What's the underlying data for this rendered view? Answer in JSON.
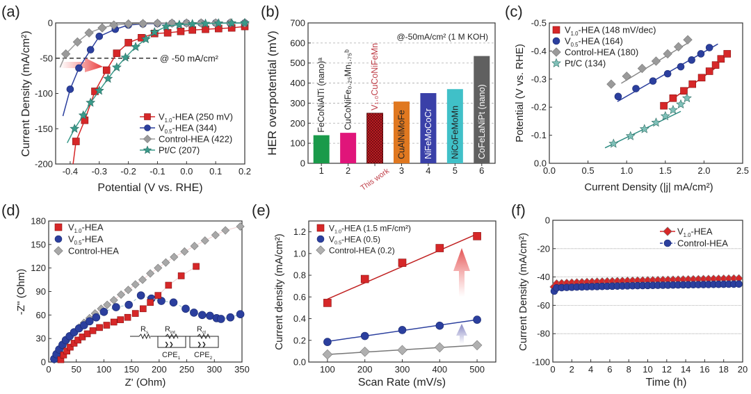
{
  "chart_data": [
    {
      "id": "a",
      "panel_label": "(a)",
      "type": "line",
      "xlabel": "Potential (V vs. RHE)",
      "ylabel": "Current Density (mA/cm²)",
      "xlim": [
        -0.45,
        0.2
      ],
      "ylim": [
        -200,
        0
      ],
      "xticks": [
        -0.4,
        -0.3,
        -0.2,
        -0.1,
        0.0,
        0.1,
        0.2
      ],
      "xtick_labels": [
        "-0.4",
        "-0.3",
        "-0.2",
        "-0.1",
        "0.0",
        "0.1",
        "0.2"
      ],
      "yticks": [
        0,
        -50,
        -100,
        -150,
        -200
      ],
      "ytick_labels": [
        "0",
        "-50",
        "-100",
        "-150",
        "-200"
      ],
      "annotation": "@ -50 mA/cm²",
      "reference_line_y": -50,
      "legend_position": "bottom-right",
      "series": [
        {
          "name": "V1.0-HEA (250 mV)",
          "label_main": "V",
          "label_sub": "1.0",
          "label_rest": "-HEA (250 mV)",
          "color": "#d62728",
          "marker": "square",
          "x": [
            -0.39,
            -0.38,
            -0.35,
            -0.315,
            -0.275,
            -0.24,
            -0.2,
            -0.155,
            -0.11,
            -0.065,
            -0.02,
            0.02,
            0.065,
            0.11,
            0.155,
            0.2
          ],
          "y": [
            -200,
            -168,
            -138,
            -97,
            -67,
            -43,
            -28,
            -21,
            -15,
            -14,
            -12,
            -10,
            -9,
            -8,
            -7,
            -5
          ]
        },
        {
          "name": "V0.5-HEA (344)",
          "label_main": "V",
          "label_sub": "0.5",
          "label_rest": "-HEA (344)",
          "color": "#2b3f9e",
          "marker": "circle",
          "x": [
            -0.425,
            -0.4,
            -0.37,
            -0.33,
            -0.3,
            -0.245,
            -0.2,
            -0.15,
            -0.1,
            -0.05,
            0.0,
            0.05,
            0.1,
            0.15,
            0.2
          ],
          "y": [
            -132,
            -94,
            -64,
            -38,
            -19,
            -9,
            -3,
            -1.5,
            -1,
            -0.5,
            -0.3,
            -0.2,
            -0.1,
            -0.1,
            0
          ]
        },
        {
          "name": "Control-HEA (422)",
          "label_main": "Control-HEA (422)",
          "label_sub": "",
          "label_rest": "",
          "color": "#9a9a9a",
          "marker": "diamond",
          "x": [
            -0.435,
            -0.415,
            -0.375,
            -0.335,
            -0.29,
            -0.25,
            -0.2,
            -0.15,
            -0.1,
            -0.05,
            0.0,
            0.05,
            0.1,
            0.15,
            0.2
          ],
          "y": [
            -63,
            -44,
            -27,
            -14,
            -7,
            -3,
            -1.5,
            -1,
            -0.5,
            -0.3,
            -0.2,
            -0.1,
            -0.1,
            0,
            0
          ]
        },
        {
          "name": "Pt/C (207)",
          "label_main": "Pt/C (207)",
          "label_sub": "",
          "label_rest": "",
          "color": "#3a9a8a",
          "marker": "star",
          "x": [
            -0.41,
            -0.385,
            -0.355,
            -0.33,
            -0.3,
            -0.27,
            -0.24,
            -0.21,
            -0.175,
            -0.14,
            -0.11,
            -0.07,
            -0.025,
            0.02,
            0.065,
            0.11,
            0.155,
            0.2
          ],
          "y": [
            -170,
            -150,
            -131,
            -113,
            -96,
            -79,
            -63,
            -49,
            -34,
            -23,
            -13,
            -5,
            -2.5,
            -1.5,
            -1,
            -0.5,
            -0.3,
            0
          ]
        }
      ]
    },
    {
      "id": "b",
      "panel_label": "(b)",
      "type": "bar",
      "title": "@-50mA/cm² (1 M KOH)",
      "ylabel": "HER overpotential (mV)",
      "ylim": [
        0,
        700
      ],
      "yticks": [
        0,
        100,
        200,
        300,
        400,
        500,
        600,
        700
      ],
      "ytick_labels": [
        "0",
        "100",
        "200",
        "300",
        "400",
        "500",
        "600",
        "700"
      ],
      "grid": true,
      "categories": [
        "1",
        "2",
        "This work",
        "3",
        "4",
        "5",
        "6"
      ],
      "bar_labels": [
        "FeCoNiAlTi (nano)ᵃ",
        "CuCoNiFe₀.₂₅Mn₁.₇₅ᵇ",
        "V₁.₀CuCoNiFeMn",
        "CuAlNiMoFe",
        "NiFeMoCoCr",
        "NiCoFeMoMn",
        "CoFeLaNiPt (nano)"
      ],
      "values": [
        140,
        152,
        250,
        308,
        350,
        370,
        535
      ],
      "colors": [
        "#1a9a4a",
        "#e0157a",
        "#b8161e",
        "#e07820",
        "#3a40a8",
        "#40c0c8",
        "#606060"
      ],
      "label_colors": [
        "#222222",
        "#222222",
        "#c0404a",
        "#222222",
        "#ffffff",
        "#222222",
        "#ffffff"
      ],
      "highlight": "This work"
    },
    {
      "id": "c",
      "panel_label": "(c)",
      "type": "scatter",
      "xlabel": "Current Density (|j| mA/cm²)",
      "ylabel": "Potential (V vs. RHE)",
      "xlim": [
        0,
        2.5
      ],
      "ylim": [
        0,
        -0.5
      ],
      "xticks": [
        0,
        0.5,
        1.0,
        1.5,
        2.0,
        2.5
      ],
      "xtick_labels": [
        "0.0",
        "0.5",
        "1.0",
        "1.5",
        "2.0",
        "2.5"
      ],
      "yticks": [
        0,
        -0.1,
        -0.2,
        -0.3,
        -0.4,
        -0.5
      ],
      "ytick_labels": [
        "0.0",
        "-0.1",
        "-0.2",
        "-0.3",
        "-0.4",
        "-0.5"
      ],
      "legend_position": "top-left",
      "series": [
        {
          "name": "V1.0-HEA (148 mV/dec)",
          "label_main": "V",
          "label_sub": "1.0",
          "label_rest": "-HEA (148 mV/dec)",
          "color": "#d62728",
          "marker": "square",
          "x": [
            1.48,
            1.6,
            1.74,
            1.85,
            1.97,
            2.07,
            2.15,
            2.22,
            2.3
          ],
          "y": [
            -0.205,
            -0.232,
            -0.258,
            -0.282,
            -0.305,
            -0.328,
            -0.35,
            -0.372,
            -0.39
          ],
          "fit": [
            [
              1.45,
              -0.2
            ],
            [
              2.15,
              -0.34
            ]
          ]
        },
        {
          "name": "V0.5-HEA (164)",
          "label_main": "V",
          "label_sub": "0.5",
          "label_rest": "-HEA (164)",
          "color": "#2b3f9e",
          "marker": "circle",
          "x": [
            0.89,
            1.12,
            1.34,
            1.53,
            1.7,
            1.84,
            1.96,
            2.07
          ],
          "y": [
            -0.238,
            -0.266,
            -0.293,
            -0.319,
            -0.344,
            -0.368,
            -0.39,
            -0.412
          ],
          "fit": [
            [
              0.88,
              -0.22
            ],
            [
              2.18,
              -0.425
            ]
          ]
        },
        {
          "name": "Control-HEA (180)",
          "label_main": "Control-HEA (180)",
          "label_sub": "",
          "label_rest": "",
          "color": "#9a9a9a",
          "marker": "diamond",
          "x": [
            0.8,
            1.0,
            1.2,
            1.38,
            1.53,
            1.67,
            1.79
          ],
          "y": [
            -0.282,
            -0.31,
            -0.338,
            -0.364,
            -0.39,
            -0.415,
            -0.44
          ],
          "fit": [
            [
              0.93,
              -0.285
            ],
            [
              1.8,
              -0.43
            ]
          ]
        },
        {
          "name": "Pt/C (134)",
          "label_main": "Pt/C (134)",
          "label_sub": "",
          "label_rest": "",
          "color": "#7fc0b8",
          "marker": "star",
          "x": [
            0.83,
            1.05,
            1.23,
            1.38,
            1.5,
            1.6,
            1.7,
            1.78
          ],
          "y": [
            -0.07,
            -0.097,
            -0.122,
            -0.145,
            -0.168,
            -0.19,
            -0.21,
            -0.232
          ],
          "fit": [
            [
              0.72,
              -0.055
            ],
            [
              1.7,
              -0.185
            ]
          ]
        }
      ]
    },
    {
      "id": "d",
      "panel_label": "(d)",
      "type": "scatter",
      "xlabel": "Z' (Ohm)",
      "ylabel": "-Z'' (Ohm)",
      "xlim": [
        0,
        350
      ],
      "ylim": [
        0,
        180
      ],
      "xticks": [
        0,
        50,
        100,
        150,
        200,
        250,
        300,
        350
      ],
      "xtick_labels": [
        "0",
        "50",
        "100",
        "150",
        "200",
        "250",
        "300",
        "350"
      ],
      "yticks": [
        0,
        30,
        60,
        90,
        120,
        150,
        180
      ],
      "ytick_labels": [
        "0",
        "30",
        "60",
        "90",
        "120",
        "150",
        "180"
      ],
      "legend_position": "top-left",
      "circuit_labels": {
        "rs": "R",
        "rs_sub": "s",
        "rint": "R",
        "rint_sub": "int",
        "rct": "R",
        "rct_sub": "ct",
        "cpe1": "CPE",
        "cpe1_sub": "1",
        "cpe2": "CPE",
        "cpe2_sub": "2"
      },
      "series": [
        {
          "name": "V1.0-HEA",
          "label_main": "V",
          "label_sub": "1.0",
          "label_rest": "-HEA",
          "color": "#d62728",
          "marker": "square",
          "x": [
            22,
            27,
            33,
            39,
            46,
            53,
            61,
            70,
            80,
            92,
            105,
            118,
            130,
            143,
            157,
            171,
            184,
            198,
            217,
            240,
            267
          ],
          "y": [
            3,
            9,
            14,
            19,
            24,
            28,
            32,
            36,
            40,
            44,
            47,
            51,
            54,
            57,
            62,
            68,
            76,
            85,
            98,
            110,
            122
          ]
        },
        {
          "name": "V0.5-HEA",
          "label_main": "V",
          "label_sub": "0.5",
          "label_rest": "-HEA",
          "color": "#2b3f9e",
          "marker": "circle",
          "x": [
            10,
            14,
            19,
            25,
            31,
            38,
            46,
            55,
            64,
            74,
            86,
            100,
            122,
            145,
            167,
            186,
            204,
            226,
            248,
            263,
            278,
            292,
            304,
            312,
            329,
            347
          ],
          "y": [
            4,
            10,
            16,
            22,
            28,
            33,
            38,
            43,
            47,
            52,
            57,
            64,
            70,
            73,
            85,
            81,
            78,
            76,
            68,
            63,
            60,
            59,
            56,
            55,
            57,
            61
          ]
        },
        {
          "name": "Control-HEA",
          "label_main": "Control-HEA",
          "label_sub": "",
          "label_rest": "",
          "color": "#a8a8a8",
          "marker": "diamond",
          "x": [
            10,
            14,
            19,
            25,
            31,
            38,
            46,
            55,
            64,
            74,
            84,
            95,
            106,
            118,
            131,
            144,
            157,
            170,
            184,
            198,
            212,
            227,
            246,
            264,
            283,
            302,
            320,
            347
          ],
          "y": [
            3,
            8,
            14,
            20,
            26,
            32,
            38,
            44,
            50,
            56,
            62,
            68,
            73,
            79,
            86,
            92,
            99,
            105,
            113,
            120,
            127,
            134,
            141,
            148,
            155,
            162,
            168,
            173
          ]
        }
      ]
    },
    {
      "id": "e",
      "panel_label": "(e)",
      "type": "scatter",
      "xlabel": "Scan Rate (mV/s)",
      "ylabel": "Current density (mA/cm²)",
      "xlim": [
        50,
        550
      ],
      "ylim": [
        0,
        1.3
      ],
      "xticks": [
        100,
        200,
        300,
        400,
        500
      ],
      "xtick_labels": [
        "100",
        "200",
        "300",
        "400",
        "500"
      ],
      "yticks": [
        0,
        0.2,
        0.4,
        0.6,
        0.8,
        1.0,
        1.2
      ],
      "ytick_labels": [
        "0.0",
        "0.2",
        "0.4",
        "0.6",
        "0.8",
        "1.0",
        "1.2"
      ],
      "legend_position": "top-left",
      "series": [
        {
          "name": "V1.0-HEA (1.5 mF/cm²)",
          "label_main": "V",
          "label_sub": "1.0",
          "label_rest": "-HEA (1.5 mF/cm²)",
          "color": "#d62728",
          "marker": "square",
          "x": [
            100,
            200,
            300,
            400,
            500
          ],
          "y": [
            0.545,
            0.765,
            0.915,
            1.05,
            1.16
          ],
          "fit": [
            [
              100,
              0.58
            ],
            [
              500,
              1.18
            ]
          ]
        },
        {
          "name": "V0.5-HEA (0.5)",
          "label_main": "V",
          "label_sub": "0.5",
          "label_rest": "-HEA (0.5)",
          "color": "#2b3f9e",
          "marker": "circle",
          "x": [
            100,
            200,
            300,
            400,
            500
          ],
          "y": [
            0.185,
            0.24,
            0.295,
            0.335,
            0.39
          ],
          "fit": [
            [
              100,
              0.19
            ],
            [
              500,
              0.39
            ]
          ]
        },
        {
          "name": "Control-HEA (0.2)",
          "label_main": "Control-HEA (0.2)",
          "label_sub": "",
          "label_rest": "",
          "color": "#b0b0b0",
          "marker": "diamond",
          "x": [
            100,
            200,
            300,
            400,
            500
          ],
          "y": [
            0.07,
            0.095,
            0.11,
            0.135,
            0.155
          ],
          "fit": [
            [
              100,
              0.07
            ],
            [
              500,
              0.155
            ]
          ]
        }
      ]
    },
    {
      "id": "f",
      "panel_label": "(f)",
      "type": "line",
      "xlabel": "Time (h)",
      "ylabel": "Current Density (mA/cm²)",
      "xlim": [
        0,
        20
      ],
      "ylim": [
        -100,
        0
      ],
      "xticks": [
        0,
        2,
        4,
        6,
        8,
        10,
        12,
        14,
        16,
        18,
        20
      ],
      "xtick_labels": [
        "0",
        "2",
        "4",
        "6",
        "8",
        "10",
        "12",
        "14",
        "16",
        "18",
        "20"
      ],
      "yticks": [
        0,
        -20,
        -40,
        -60,
        -80,
        -100
      ],
      "ytick_labels": [
        "0",
        "-20",
        "-40",
        "-60",
        "-80",
        "-100"
      ],
      "grid": true,
      "legend_position": "top-right",
      "series": [
        {
          "name": "V1.0-HEA",
          "label_main": "V",
          "label_sub": "1.0",
          "label_rest": "-HEA",
          "color": "#d62728",
          "marker": "diamond",
          "start": -47,
          "start_x": 0.1,
          "end": -41,
          "points": 37
        },
        {
          "name": "Control-HEA",
          "label_main": "Control-HEA",
          "label_sub": "",
          "label_rest": "",
          "color": "#2b3f9e",
          "marker": "circle",
          "start": -50,
          "start_x": 0.15,
          "end": -45,
          "points": 37
        }
      ]
    }
  ]
}
